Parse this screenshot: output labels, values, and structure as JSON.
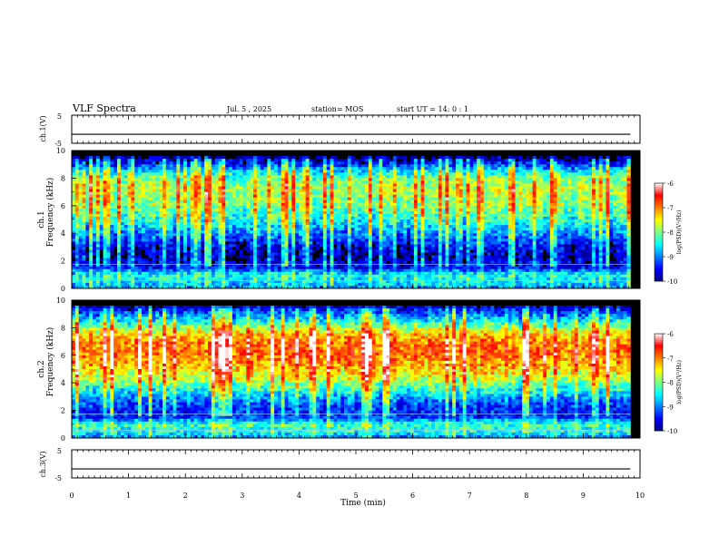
{
  "header": {
    "title": "VLF Spectra",
    "date": "Jul. 5 , 2025",
    "station": "station= MOS",
    "start_ut": "start UT = 14: 0 : 1"
  },
  "chart_data": [
    {
      "type": "line",
      "panel": "ch1-voltage",
      "ylabel": "ch.1(V)",
      "ylim": [
        -5,
        5
      ],
      "yticks": [
        "5",
        "-5"
      ],
      "x": [
        0,
        9.83
      ],
      "values": [
        -1.8,
        -1.8
      ]
    },
    {
      "type": "heatmap",
      "panel": "ch1-spectrogram",
      "ylabel": "ch.1 Frequency (kHz)",
      "ylim": [
        0,
        10
      ],
      "yticks": [
        "0",
        "2",
        "4",
        "6",
        "8",
        "10"
      ],
      "x_extent_min": [
        0,
        9.83
      ],
      "colorbar": {
        "label": "log(PSD)(V²/Hz)",
        "ticks": [
          "-6",
          "-7",
          "-8",
          "-9",
          "-10"
        ],
        "range": [
          -10,
          -6
        ]
      },
      "band_profile": {
        "freq_khz": [
          0,
          0.5,
          1,
          1.5,
          2,
          2.5,
          3,
          3.5,
          4,
          4.5,
          5,
          5.5,
          6,
          6.5,
          7,
          7.5,
          8,
          8.5,
          9,
          9.5,
          10
        ],
        "log_psd": [
          -9.0,
          -8.6,
          -8.5,
          -9.5,
          -9.7,
          -9.8,
          -9.6,
          -9.3,
          -9.0,
          -8.7,
          -8.4,
          -8.2,
          -8.0,
          -7.9,
          -7.8,
          -7.9,
          -8.1,
          -8.6,
          -9.4,
          -9.9,
          -10
        ]
      }
    },
    {
      "type": "heatmap",
      "panel": "ch2-spectrogram",
      "ylabel": "ch.2 Frequency (kHz)",
      "ylim": [
        0,
        10
      ],
      "yticks": [
        "0",
        "2",
        "4",
        "6",
        "8",
        "10"
      ],
      "x_extent_min": [
        0,
        9.83
      ],
      "colorbar": {
        "label": "log(PSD)(V²/Hz)",
        "ticks": [
          "-6",
          "-7",
          "-8",
          "-9",
          "-10"
        ],
        "range": [
          -10,
          -6
        ]
      },
      "band_profile": {
        "freq_khz": [
          0,
          0.5,
          1,
          1.5,
          2,
          2.5,
          3,
          3.5,
          4,
          4.5,
          5,
          5.5,
          6,
          6.5,
          7,
          7.5,
          8,
          8.5,
          9,
          9.5,
          10
        ],
        "log_psd": [
          -9.0,
          -8.4,
          -8.3,
          -9.3,
          -9.4,
          -9.2,
          -8.8,
          -8.4,
          -8.0,
          -7.6,
          -7.3,
          -7.1,
          -6.9,
          -6.9,
          -7.0,
          -7.3,
          -7.9,
          -8.5,
          -9.1,
          -9.6,
          -9.9
        ]
      }
    },
    {
      "type": "line",
      "panel": "ch3-voltage",
      "ylabel": "ch.3(V)",
      "ylim": [
        -5,
        5
      ],
      "yticks": [
        "5",
        "-5"
      ],
      "x": [
        0,
        9.83
      ],
      "values": [
        -1.8,
        -1.8
      ]
    }
  ],
  "xaxis": {
    "label": "Time (min)",
    "range": [
      0,
      10
    ],
    "ticks": [
      "0",
      "1",
      "2",
      "3",
      "4",
      "5",
      "6",
      "7",
      "8",
      "9",
      "10"
    ]
  },
  "colors": {
    "colormap": [
      "#00007f",
      "#0000ff",
      "#0080ff",
      "#00ffff",
      "#80ff80",
      "#ffff00",
      "#ff8000",
      "#ff0000",
      "#ffffff"
    ]
  }
}
